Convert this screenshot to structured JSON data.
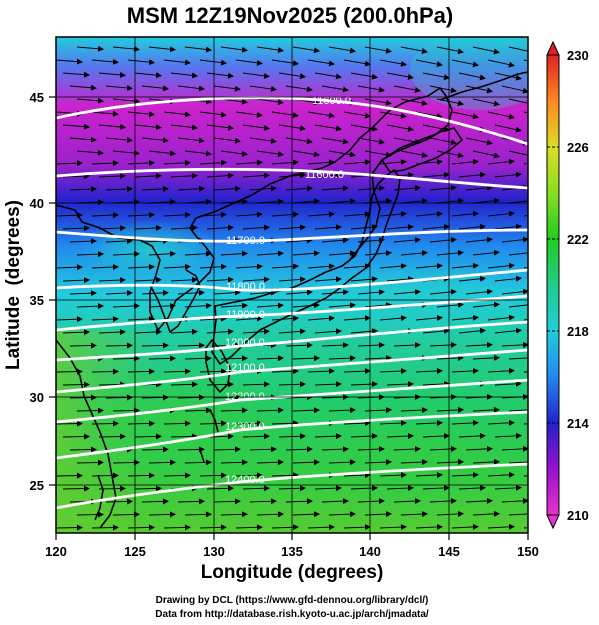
{
  "title": "MSM 12Z19Nov2025 (200.0hPa)",
  "x_axis": {
    "label": "Longitude (degrees)",
    "ticks": [
      "120",
      "125",
      "130",
      "135",
      "140",
      "145",
      "150"
    ],
    "range": [
      120,
      150
    ]
  },
  "y_axis": {
    "label": "Latitude  (degrees)",
    "ticks": [
      "25",
      "30",
      "35",
      "40",
      "45"
    ],
    "range": [
      22.5,
      48
    ]
  },
  "colorbar": {
    "labels": [
      "230",
      "226",
      "222",
      "218",
      "214",
      "210"
    ],
    "range": [
      210,
      230
    ],
    "colors": [
      "#e633cc",
      "#9911cc",
      "#2222cc",
      "#2288ee",
      "#22ccdd",
      "#22cc88",
      "#22cc22",
      "#88dd22",
      "#dddd22",
      "#ffaa22",
      "#ff6622",
      "#dd2222"
    ]
  },
  "contour_labels": [
    "11600.0",
    "11600.0",
    "11700.0",
    "11800.0",
    "11900.0",
    "12000.0",
    "12100.0",
    "12200.0",
    "12300.0",
    "12400.0"
  ],
  "credits": [
    "Drawing by DCL (https://www.gfd-dennou.org/library/dcl/)",
    "Data from http://database.rish.kyoto-u.ac.jp/arch/jmadata/"
  ]
}
